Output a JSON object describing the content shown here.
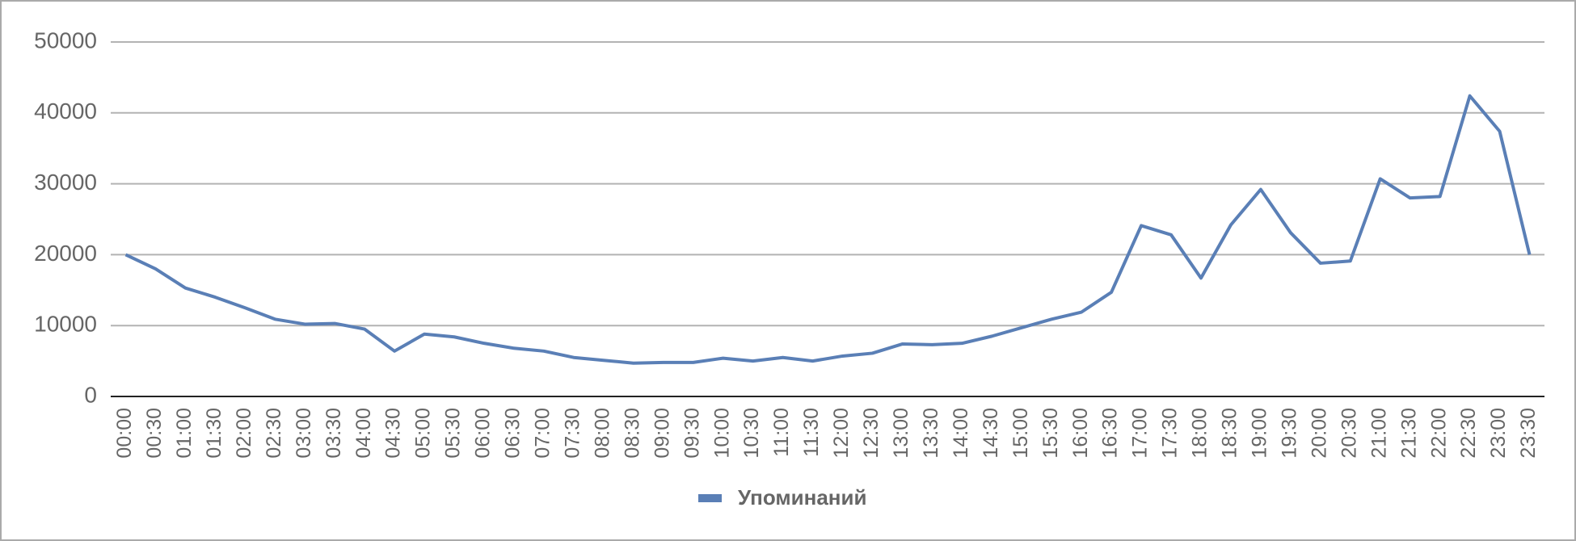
{
  "chart_data": {
    "type": "line",
    "categories": [
      "00:00",
      "00:30",
      "01:00",
      "01:30",
      "02:00",
      "02:30",
      "03:00",
      "03:30",
      "04:00",
      "04:30",
      "05:00",
      "05:30",
      "06:00",
      "06:30",
      "07:00",
      "07:30",
      "08:00",
      "08:30",
      "09:00",
      "09:30",
      "10:00",
      "10:30",
      "11:00",
      "11:30",
      "12:00",
      "12:30",
      "13:00",
      "13:30",
      "14:00",
      "14:30",
      "15:00",
      "15:30",
      "16:00",
      "16:30",
      "17:00",
      "17:30",
      "18:00",
      "18:30",
      "19:00",
      "19:30",
      "20:00",
      "20:30",
      "21:00",
      "21:30",
      "22:00",
      "22:30",
      "23:00",
      "23:30"
    ],
    "series": [
      {
        "name": "Упоминаний",
        "color": "#5a7fb6",
        "values": [
          20000,
          18000,
          15300,
          14000,
          12500,
          10900,
          10200,
          10300,
          9500,
          6400,
          8800,
          8400,
          7500,
          6800,
          6400,
          5500,
          5100,
          4700,
          4800,
          4800,
          5400,
          5000,
          5500,
          5000,
          5700,
          6100,
          7400,
          7300,
          7500,
          8500,
          9700,
          10900,
          11900,
          14700,
          24100,
          22800,
          16700,
          24200,
          29200,
          23100,
          18800,
          19100,
          30700,
          28000,
          28200,
          42400,
          37400,
          20000
        ]
      }
    ],
    "ylim": [
      0,
      50000
    ],
    "yticks": [
      0,
      10000,
      20000,
      30000,
      40000,
      50000
    ],
    "grid": true,
    "legend": "bottom"
  }
}
